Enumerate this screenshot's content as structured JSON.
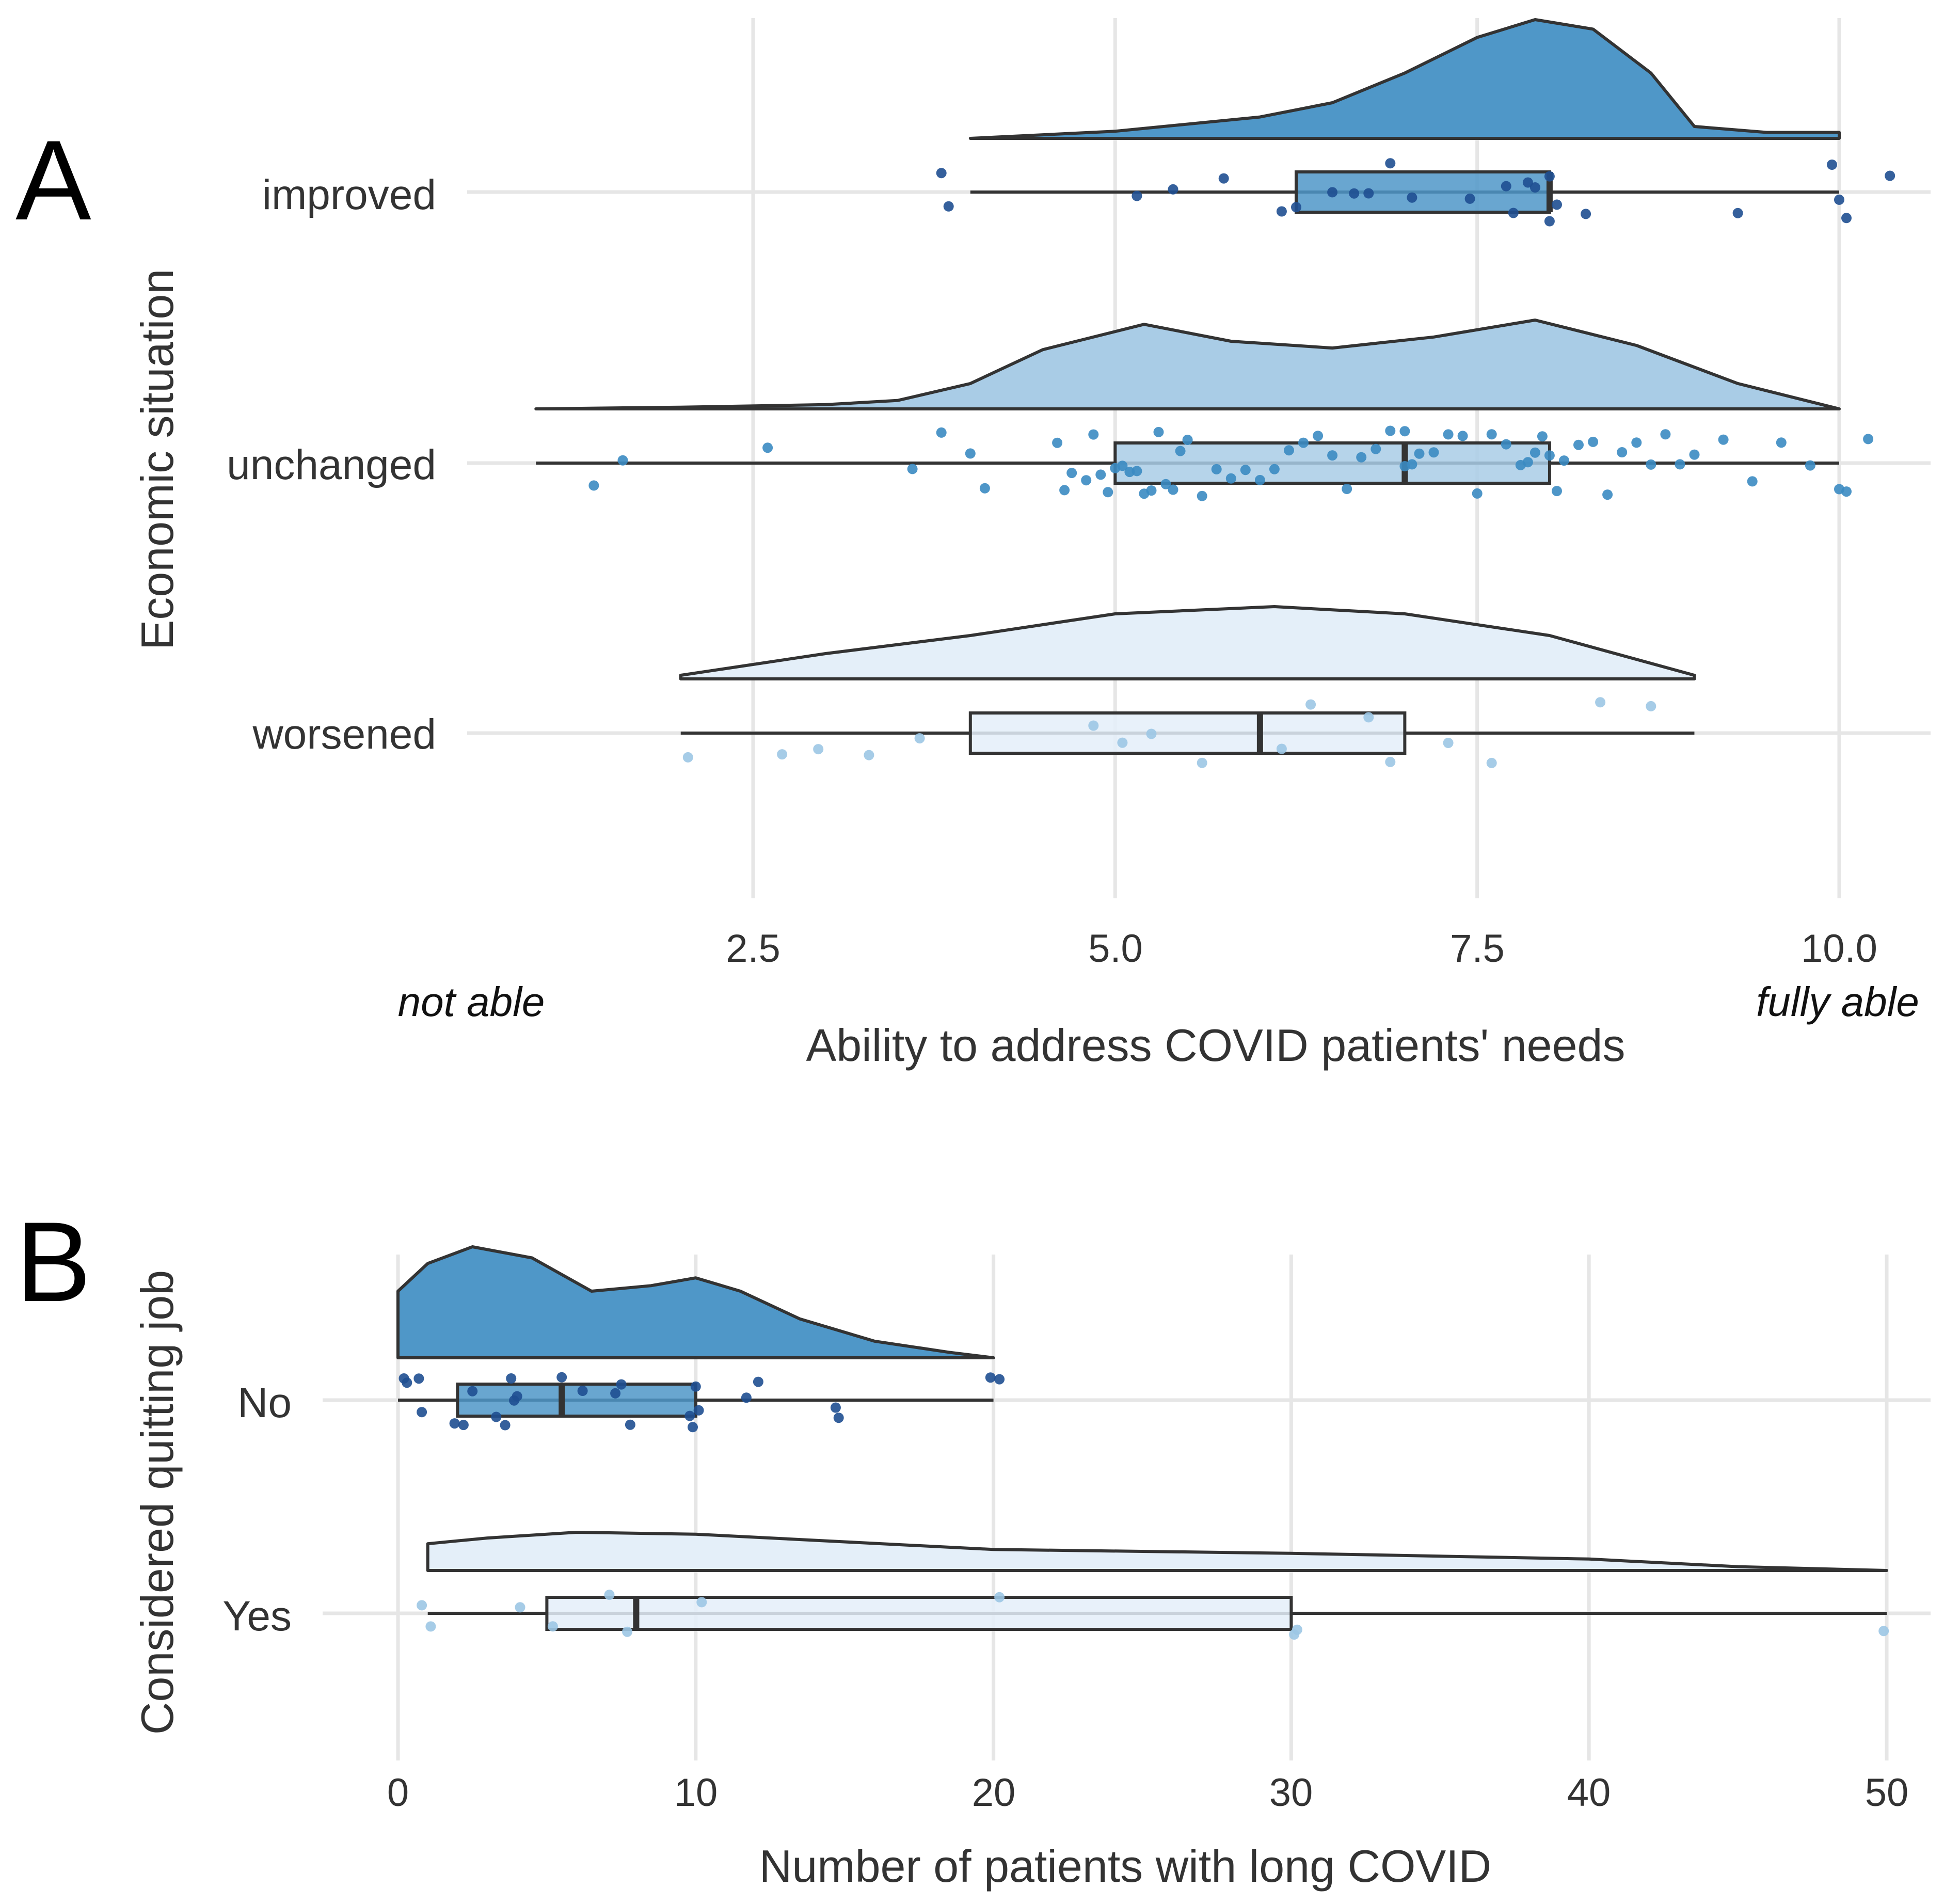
{
  "chart_data": [
    {
      "panel_label": "A",
      "type": "raincloud",
      "orientation": "horizontal",
      "xlabel": "Ability to address COVID patients' needs",
      "ylabel": "Economic situation",
      "x_ticks": [
        "2.5",
        "5.0",
        "7.5",
        "10.0"
      ],
      "xlim": [
        0.4,
        10.8
      ],
      "anchor_low": "not able",
      "anchor_high": "fully able",
      "colors": {
        "improved": "#4f97c8",
        "unchanged": "#a9cce6",
        "worsened": "#e4eff9",
        "point_improved": "#1f4f91",
        "point_unchanged": "#3b8bc2",
        "point_worsened": "#9cc7e4"
      },
      "series": [
        {
          "name": "improved",
          "min": 4.0,
          "q1": 6.25,
          "median": 8.0,
          "q3": 8.0,
          "max": 10.0,
          "density": {
            "x": [
              4.0,
              5.0,
              6.0,
              6.5,
              7.0,
              7.5,
              7.9,
              8.3,
              8.7,
              9.0,
              9.5,
              10.0
            ],
            "y": [
              0.0,
              0.06,
              0.18,
              0.3,
              0.55,
              0.85,
              1.0,
              0.92,
              0.55,
              0.1,
              0.05,
              0.05
            ]
          },
          "points": [
            3.8,
            3.85,
            5.15,
            5.4,
            5.75,
            6.15,
            6.25,
            6.5,
            6.65,
            6.75,
            6.9,
            7.05,
            7.45,
            7.7,
            7.75,
            7.85,
            7.9,
            8.0,
            8.0,
            8.05,
            8.25,
            9.3,
            9.95,
            10.0,
            10.05,
            10.35
          ]
        },
        {
          "name": "unchanged",
          "min": 1.0,
          "q1": 5.0,
          "median": 7.0,
          "q3": 8.0,
          "max": 10.0,
          "density": {
            "x": [
              1.0,
              2.0,
              3.0,
              3.5,
              4.0,
              4.5,
              5.2,
              5.8,
              6.5,
              7.2,
              7.9,
              8.6,
              9.3,
              10.0
            ],
            "y": [
              0.0,
              0.02,
              0.05,
              0.1,
              0.3,
              0.7,
              1.0,
              0.8,
              0.72,
              0.85,
              1.05,
              0.75,
              0.3,
              0.0
            ]
          },
          "points": [
            1.4,
            1.6,
            2.6,
            3.6,
            3.8,
            4.0,
            4.1,
            4.6,
            4.65,
            4.7,
            4.8,
            4.85,
            4.9,
            4.95,
            5.0,
            5.05,
            5.1,
            5.15,
            5.2,
            5.25,
            5.3,
            5.35,
            5.4,
            5.45,
            5.5,
            5.6,
            5.7,
            5.8,
            5.9,
            6.0,
            6.1,
            6.2,
            6.3,
            6.4,
            6.5,
            6.6,
            6.7,
            6.8,
            6.9,
            7.0,
            7.0,
            7.05,
            7.1,
            7.2,
            7.3,
            7.4,
            7.5,
            7.6,
            7.7,
            7.8,
            7.85,
            7.9,
            7.95,
            8.0,
            8.05,
            8.1,
            8.2,
            8.3,
            8.4,
            8.5,
            8.6,
            8.7,
            8.8,
            8.9,
            9.0,
            9.2,
            9.4,
            9.6,
            9.8,
            10.0,
            10.05,
            10.2
          ]
        },
        {
          "name": "worsened",
          "min": 2.0,
          "q1": 4.0,
          "median": 6.0,
          "q3": 7.0,
          "max": 9.0,
          "density": {
            "x": [
              2.0,
              3.0,
              4.0,
              5.0,
              6.1,
              7.0,
              8.0,
              9.0
            ],
            "y": [
              0.05,
              0.35,
              0.6,
              0.9,
              1.0,
              0.9,
              0.6,
              0.05
            ]
          },
          "points": [
            2.05,
            2.7,
            2.95,
            3.3,
            3.65,
            4.85,
            5.05,
            5.25,
            5.6,
            6.15,
            6.35,
            6.75,
            6.9,
            7.3,
            7.6,
            8.35,
            8.7
          ]
        }
      ]
    },
    {
      "panel_label": "B",
      "type": "raincloud",
      "orientation": "horizontal",
      "xlabel": "Number of patients with long COVID",
      "ylabel": "Considered quitting job",
      "x_ticks": [
        "0",
        "10",
        "20",
        "30",
        "40",
        "50"
      ],
      "xlim": [
        -2.5,
        52.5
      ],
      "colors": {
        "No": "#4f97c8",
        "Yes": "#e4eff9",
        "point_No": "#1f4f91",
        "point_Yes": "#9cc7e4"
      },
      "series": [
        {
          "name": "No",
          "min": 0.0,
          "q1": 2.0,
          "median": 5.5,
          "q3": 10.0,
          "max": 20.0,
          "density": {
            "x": [
              0.0,
              1.0,
              2.5,
              4.5,
              6.5,
              8.5,
              10.0,
              11.5,
              13.5,
              16.0,
              18.5,
              20.0
            ],
            "y": [
              0.6,
              0.85,
              1.0,
              0.9,
              0.6,
              0.65,
              0.72,
              0.6,
              0.35,
              0.15,
              0.05,
              0.0
            ]
          },
          "points": [
            0.2,
            0.3,
            0.7,
            0.8,
            1.9,
            2.2,
            2.5,
            3.3,
            3.6,
            3.8,
            3.9,
            4.0,
            5.5,
            6.2,
            7.3,
            7.5,
            7.8,
            9.8,
            9.9,
            10.0,
            10.1,
            11.7,
            12.1,
            14.8,
            14.7,
            19.9,
            20.2
          ]
        },
        {
          "name": "Yes",
          "min": 1.0,
          "q1": 5.0,
          "median": 8.0,
          "q3": 30.0,
          "max": 50.0,
          "density": {
            "x": [
              1.0,
              3.0,
              6.0,
              10.0,
              15.0,
              20.0,
              30.0,
              40.0,
              45.0,
              50.0
            ],
            "y": [
              0.7,
              0.85,
              1.0,
              0.95,
              0.75,
              0.55,
              0.45,
              0.3,
              0.1,
              0.0
            ]
          },
          "points": [
            0.8,
            1.1,
            4.1,
            5.2,
            7.1,
            7.7,
            10.2,
            20.2,
            30.1,
            30.2,
            49.9
          ]
        }
      ]
    }
  ]
}
